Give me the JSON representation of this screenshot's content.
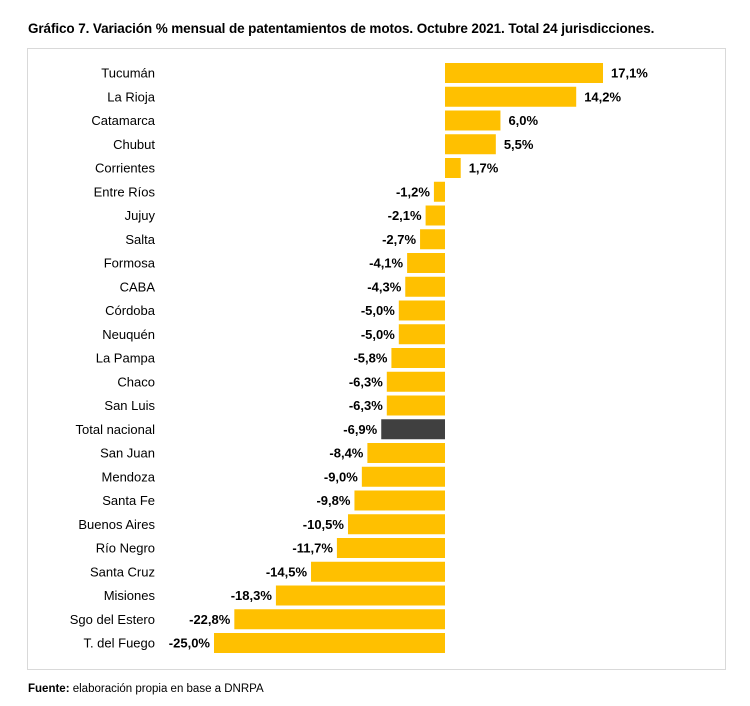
{
  "chart_data": {
    "type": "bar",
    "orientation": "horizontal",
    "title": "Gráfico 7. Variación % mensual de patentamientos de motos. Octubre 2021. Total 24 jurisdicciones.",
    "categories": [
      "Tucumán",
      "La Rioja",
      "Catamarca",
      "Chubut",
      "Corrientes",
      "Entre Ríos",
      "Jujuy",
      "Salta",
      "Formosa",
      "CABA",
      "Córdoba",
      "Neuquén",
      "La Pampa",
      "Chaco",
      "San Luis",
      "Total nacional",
      "San Juan",
      "Mendoza",
      "Santa Fe",
      "Buenos Aires",
      "Río Negro",
      "Santa Cruz",
      "Misiones",
      "Sgo del Estero",
      "T. del Fuego"
    ],
    "values": [
      17.1,
      14.2,
      6.0,
      5.5,
      1.7,
      -1.2,
      -2.1,
      -2.7,
      -4.1,
      -4.3,
      -5.0,
      -5.0,
      -5.8,
      -6.3,
      -6.3,
      -6.9,
      -8.4,
      -9.0,
      -9.8,
      -10.5,
      -11.7,
      -14.5,
      -18.3,
      -22.8,
      -25.0
    ],
    "data_labels": [
      "17,1%",
      "14,2%",
      "6,0%",
      "5,5%",
      "1,7%",
      "-1,2%",
      "-2,1%",
      "-2,7%",
      "-4,1%",
      "-4,3%",
      "-5,0%",
      "-5,0%",
      "-5,8%",
      "-6,3%",
      "-6,3%",
      "-6,9%",
      "-8,4%",
      "-9,0%",
      "-9,8%",
      "-10,5%",
      "-11,7%",
      "-14,5%",
      "-18,3%",
      "-22,8%",
      "-25,0%"
    ],
    "highlight_category": "Total nacional",
    "xlabel": "",
    "ylabel": "",
    "grid": false,
    "legend": "none",
    "colors": {
      "bar": "#FFC000",
      "highlight": "#404040"
    }
  },
  "footer": {
    "label": "Fuente:",
    "text": " elaboración propia en base a DNRPA"
  }
}
